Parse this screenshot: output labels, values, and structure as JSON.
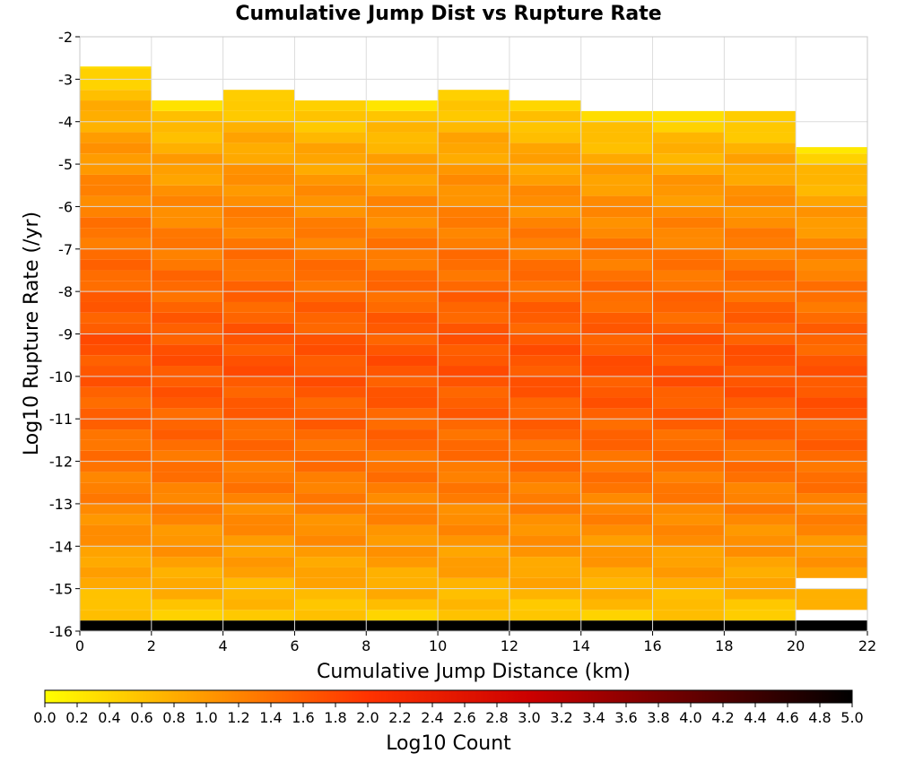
{
  "chart_data": {
    "type": "heatmap",
    "title": "Cumulative Jump Dist vs Rupture Rate",
    "xlabel": "Cumulative Jump Distance (km)",
    "ylabel": "Log10 Rupture Rate (/yr)",
    "xlim": [
      0,
      22
    ],
    "ylim": [
      -16,
      -2
    ],
    "x_ticks": [
      0,
      2,
      4,
      6,
      8,
      10,
      12,
      14,
      16,
      18,
      20,
      22
    ],
    "y_ticks": [
      -2,
      -3,
      -4,
      -5,
      -6,
      -7,
      -8,
      -9,
      -10,
      -11,
      -12,
      -13,
      -14,
      -15,
      -16
    ],
    "grid": true,
    "x_bin_width_km": 2,
    "y_bin_width": 0.25,
    "x_bins": [
      0,
      2,
      4,
      6,
      8,
      10,
      12,
      14,
      16,
      18,
      20
    ],
    "bin_ranges_log10_rate": [
      [
        -16,
        -2.7
      ],
      [
        -16,
        -3.5
      ],
      [
        -16,
        -3.25
      ],
      [
        -16,
        -3.5
      ],
      [
        -16,
        -3.5
      ],
      [
        -16,
        -3.25
      ],
      [
        -16,
        -3.5
      ],
      [
        -16,
        -3.75
      ],
      [
        -16,
        -3.75
      ],
      [
        -16,
        -3.75
      ],
      [
        -16,
        -4.6
      ]
    ],
    "bin_gaps_log10_rate": [
      {
        "x": 20,
        "y": [
          -15.0,
          -14.75
        ]
      },
      {
        "x": 20,
        "y": [
          -15.75,
          -15.5
        ]
      }
    ],
    "bottom_row_log10_count": 5.0,
    "colorbar": {
      "label": "Log10 Count",
      "min": 0.0,
      "max": 5.0,
      "ticks": [
        "0.0",
        "0.2",
        "0.4",
        "0.6",
        "0.8",
        "1.0",
        "1.2",
        "1.4",
        "1.6",
        "1.8",
        "2.0",
        "2.2",
        "2.4",
        "2.6",
        "2.8",
        "3.0",
        "3.2",
        "3.4",
        "3.6",
        "3.8",
        "4.0",
        "4.2",
        "4.4",
        "4.6",
        "4.8",
        "5.0"
      ],
      "colors": [
        "#ffff00",
        "#ff9900",
        "#ff3300",
        "#cc0000",
        "#660000",
        "#000000"
      ]
    }
  }
}
